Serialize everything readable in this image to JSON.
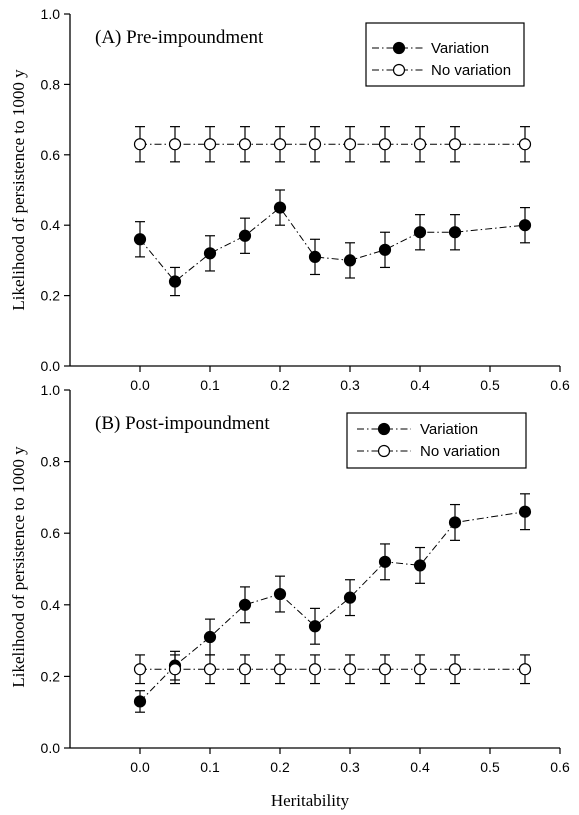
{
  "chart_data": [
    {
      "type": "line",
      "title": "(A) Pre-impoundment",
      "xlabel": "",
      "ylabel": "Likelihood of persistence to 1000 y",
      "xlim": [
        -0.1,
        0.6
      ],
      "ylim": [
        0.0,
        1.0
      ],
      "x_ticks": [
        "0.0",
        "0.1",
        "0.2",
        "0.3",
        "0.4",
        "0.5",
        "0.6"
      ],
      "y_ticks": [
        "0.0",
        "0.2",
        "0.4",
        "0.6",
        "0.8",
        "1.0"
      ],
      "grid": false,
      "legend_position": "top-right",
      "x": [
        0.0,
        0.05,
        0.1,
        0.15,
        0.2,
        0.25,
        0.3,
        0.35,
        0.4,
        0.45,
        0.55
      ],
      "series": [
        {
          "name": "Variation",
          "marker": "filled-circle",
          "values": [
            0.36,
            0.24,
            0.32,
            0.37,
            0.45,
            0.31,
            0.3,
            0.33,
            0.38,
            0.38,
            0.4
          ],
          "error": [
            0.05,
            0.04,
            0.05,
            0.05,
            0.05,
            0.05,
            0.05,
            0.05,
            0.05,
            0.05,
            0.05
          ]
        },
        {
          "name": "No variation",
          "marker": "open-circle",
          "values": [
            0.63,
            0.63,
            0.63,
            0.63,
            0.63,
            0.63,
            0.63,
            0.63,
            0.63,
            0.63,
            0.63
          ],
          "error": [
            0.05,
            0.05,
            0.05,
            0.05,
            0.05,
            0.05,
            0.05,
            0.05,
            0.05,
            0.05,
            0.05
          ]
        }
      ]
    },
    {
      "type": "line",
      "title": "(B) Post-impoundment",
      "xlabel": "Heritability",
      "ylabel": "Likelihood of persistence to 1000 y",
      "xlim": [
        -0.1,
        0.6
      ],
      "ylim": [
        0.0,
        1.0
      ],
      "x_ticks": [
        "0.0",
        "0.1",
        "0.2",
        "0.3",
        "0.4",
        "0.5",
        "0.6"
      ],
      "y_ticks": [
        "0.0",
        "0.2",
        "0.4",
        "0.6",
        "0.8",
        "1.0"
      ],
      "grid": false,
      "legend_position": "top-right",
      "x": [
        0.0,
        0.05,
        0.1,
        0.15,
        0.2,
        0.25,
        0.3,
        0.35,
        0.4,
        0.45,
        0.55
      ],
      "series": [
        {
          "name": "Variation",
          "marker": "filled-circle",
          "values": [
            0.13,
            0.23,
            0.31,
            0.4,
            0.43,
            0.34,
            0.42,
            0.52,
            0.51,
            0.63,
            0.66
          ],
          "error": [
            0.03,
            0.04,
            0.05,
            0.05,
            0.05,
            0.05,
            0.05,
            0.05,
            0.05,
            0.05,
            0.05
          ]
        },
        {
          "name": "No variation",
          "marker": "open-circle",
          "values": [
            0.22,
            0.22,
            0.22,
            0.22,
            0.22,
            0.22,
            0.22,
            0.22,
            0.22,
            0.22,
            0.22
          ],
          "error": [
            0.04,
            0.04,
            0.04,
            0.04,
            0.04,
            0.04,
            0.04,
            0.04,
            0.04,
            0.04,
            0.04
          ]
        }
      ]
    }
  ]
}
